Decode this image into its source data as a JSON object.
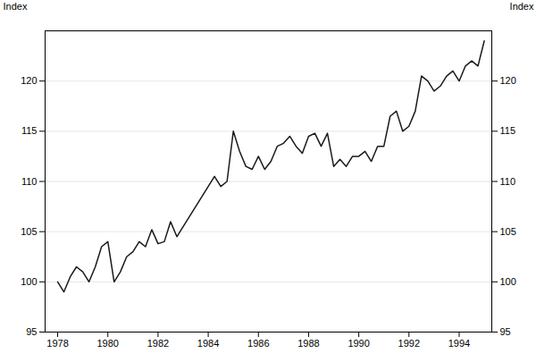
{
  "chart_data": {
    "type": "line",
    "ylabel": "Index",
    "y2label": "Index",
    "color": "#1a1a1a",
    "grid": true,
    "xlim": [
      1977.5,
      1995.3
    ],
    "xticks": [
      1978,
      1980,
      1982,
      1984,
      1986,
      1988,
      1990,
      1992,
      1994
    ],
    "ylim": [
      95,
      125
    ],
    "yticks": [
      95,
      100,
      105,
      110,
      115,
      120
    ],
    "y2lim": [
      95,
      125
    ],
    "y2ticks": [
      95,
      100,
      105,
      110,
      115,
      120
    ],
    "x": [
      1978.0,
      1978.25,
      1978.5,
      1978.75,
      1979.0,
      1979.25,
      1979.5,
      1979.75,
      1980.0,
      1980.25,
      1980.5,
      1980.75,
      1981.0,
      1981.25,
      1981.5,
      1981.75,
      1982.0,
      1982.25,
      1982.5,
      1982.75,
      1983.0,
      1983.25,
      1983.5,
      1983.75,
      1984.0,
      1984.25,
      1984.5,
      1984.75,
      1985.0,
      1985.25,
      1985.5,
      1985.75,
      1986.0,
      1986.25,
      1986.5,
      1986.75,
      1987.0,
      1987.25,
      1987.5,
      1987.75,
      1988.0,
      1988.25,
      1988.5,
      1988.75,
      1989.0,
      1989.25,
      1989.5,
      1989.75,
      1990.0,
      1990.25,
      1990.5,
      1990.75,
      1991.0,
      1991.25,
      1991.5,
      1991.75,
      1992.0,
      1992.25,
      1992.5,
      1992.75,
      1993.0,
      1993.25,
      1993.5,
      1993.75,
      1994.0,
      1994.25,
      1994.5,
      1994.75,
      1995.0
    ],
    "values": [
      100.0,
      99.0,
      100.5,
      101.5,
      101.0,
      100.0,
      101.5,
      103.5,
      104.0,
      100.0,
      101.0,
      102.5,
      103.0,
      104.0,
      103.5,
      105.2,
      103.8,
      104.0,
      106.0,
      104.5,
      105.5,
      106.5,
      107.5,
      108.5,
      109.5,
      110.5,
      109.5,
      110.0,
      115.0,
      113.0,
      111.5,
      111.2,
      112.5,
      111.2,
      112.0,
      113.5,
      113.8,
      114.5,
      113.5,
      112.8,
      114.5,
      114.8,
      113.5,
      114.8,
      111.5,
      112.2,
      111.5,
      112.5,
      112.5,
      113.0,
      112.0,
      113.5,
      113.5,
      116.5,
      117.0,
      115.0,
      115.5,
      117.0,
      120.5,
      120.0,
      119.0,
      119.5,
      120.5,
      121.0,
      120.0,
      121.5,
      122.0,
      121.5,
      124.0
    ]
  }
}
